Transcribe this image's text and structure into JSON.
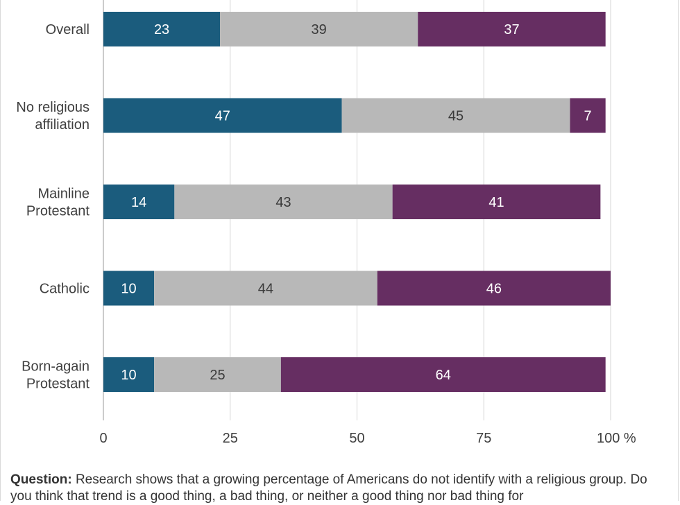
{
  "chart_data": {
    "type": "bar",
    "orientation": "horizontal",
    "stacked": true,
    "categories": [
      "Overall",
      "No religious affiliation",
      "Mainline Protestant",
      "Catholic",
      "Born-again Protestant"
    ],
    "category_label_lines": [
      [
        "Overall"
      ],
      [
        "No religious",
        "affiliation"
      ],
      [
        "Mainline",
        "Protestant"
      ],
      [
        "Catholic"
      ],
      [
        "Born-again",
        "Protestant"
      ]
    ],
    "series": [
      {
        "values": [
          23,
          47,
          14,
          10,
          10
        ],
        "color": "#1b5c7d",
        "label_color": "#ffffff"
      },
      {
        "values": [
          39,
          45,
          43,
          44,
          25
        ],
        "color": "#b8b8b8",
        "label_color": "#3a3a3a"
      },
      {
        "values": [
          37,
          7,
          41,
          46,
          64
        ],
        "color": "#662e62",
        "label_color": "#ffffff"
      }
    ],
    "xlim": [
      0,
      100
    ],
    "x_ticks": [
      0,
      25,
      50,
      75,
      100
    ],
    "x_tick_labels": [
      "0",
      "25",
      "50",
      "75",
      "100 %"
    ],
    "grid": "vertical",
    "legend": "none"
  },
  "footnote": {
    "question_label": "Question:",
    "question_text": "Research shows that a growing percentage of Americans do not identify with a religious group. Do you think that trend is a good thing, a bad thing, or neither a good thing nor bad thing for"
  }
}
